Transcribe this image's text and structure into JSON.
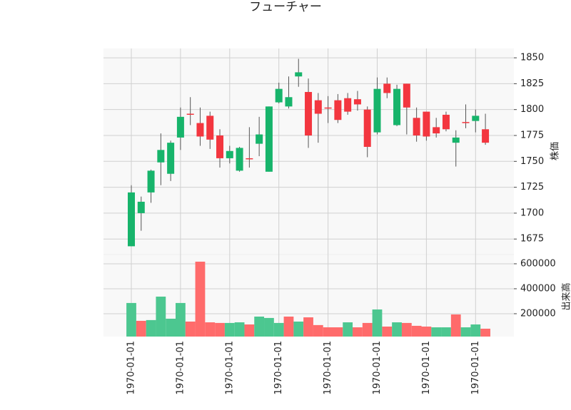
{
  "chart_data": {
    "type": "candlestick",
    "title": "フューチャー",
    "ylabel": "株価",
    "y2label": "出来高",
    "open": [
      1668,
      1700,
      1720,
      1749,
      1738,
      1773,
      1796,
      1787,
      1794,
      1775,
      1753,
      1741,
      1753,
      1767,
      1740,
      1807,
      1803,
      1832,
      1817,
      1809,
      1802,
      1809,
      1811,
      1810,
      1800,
      1778,
      1825,
      1785,
      1825,
      1792,
      1798,
      1783,
      1795,
      1768,
      1788,
      1789,
      1781
    ],
    "high": [
      1727,
      1716,
      1742,
      1777,
      1770,
      1802,
      1812,
      1802,
      1798,
      1781,
      1765,
      1764,
      1783,
      1793,
      1803,
      1826,
      1832,
      1849,
      1830,
      1816,
      1813,
      1815,
      1816,
      1818,
      1803,
      1831,
      1831,
      1824,
      1825,
      1802,
      1798,
      1792,
      1798,
      1780,
      1805,
      1800,
      1796
    ],
    "low": [
      1668,
      1683,
      1710,
      1727,
      1731,
      1761,
      1785,
      1765,
      1762,
      1744,
      1748,
      1740,
      1744,
      1755,
      1740,
      1806,
      1801,
      1822,
      1763,
      1768,
      1787,
      1787,
      1795,
      1799,
      1754,
      1776,
      1811,
      1784,
      1776,
      1769,
      1770,
      1773,
      1779,
      1745,
      1782,
      1778,
      1766
    ],
    "close": [
      1720,
      1711,
      1741,
      1761,
      1768,
      1793,
      1795,
      1774,
      1771,
      1753,
      1760,
      1763,
      1752,
      1776,
      1803,
      1820,
      1812,
      1836,
      1775,
      1796,
      1801,
      1790,
      1798,
      1805,
      1764,
      1820,
      1816,
      1820,
      1802,
      1775,
      1774,
      1777,
      1781,
      1773,
      1787,
      1794,
      1768
    ],
    "volume": [
      286000,
      143000,
      149000,
      337000,
      160000,
      286000,
      137000,
      617000,
      131000,
      126000,
      126000,
      131000,
      114000,
      177000,
      166000,
      126000,
      177000,
      137000,
      171000,
      109000,
      91000,
      91000,
      131000,
      91000,
      126000,
      234000,
      97000,
      131000,
      126000,
      103000,
      97000,
      91000,
      91000,
      194000,
      91000,
      114000,
      80000
    ],
    "volume_colors": [
      "#4cc790",
      "#ff6b6b",
      "#4cc790",
      "#4cc790",
      "#4cc790",
      "#4cc790",
      "#ff6b6b",
      "#ff6b6b",
      "#ff6b6b",
      "#ff6b6b",
      "#4cc790",
      "#4cc790",
      "#ff6b6b",
      "#4cc790",
      "#4cc790",
      "#4cc790",
      "#ff6b6b",
      "#4cc790",
      "#ff6b6b",
      "#ff6b6b",
      "#ff6b6b",
      "#ff6b6b",
      "#4cc790",
      "#ff6b6b",
      "#ff6b6b",
      "#4cc790",
      "#ff6b6b",
      "#4cc790",
      "#ff6b6b",
      "#ff6b6b",
      "#ff6b6b",
      "#4cc790",
      "#4cc790",
      "#ff6b6b",
      "#4cc790",
      "#4cc790",
      "#ff6b6b"
    ],
    "up_color": "#17b46b",
    "down_color": "#f3363f",
    "ylim": [
      1660,
      1859
    ],
    "yticks": [
      1675,
      1700,
      1725,
      1750,
      1775,
      1800,
      1825,
      1850
    ],
    "y2lim": [
      17000,
      674000
    ],
    "y2ticks": [
      200000,
      400000,
      600000
    ],
    "xticks": [
      {
        "value": 0,
        "label": "1970-01-01"
      },
      {
        "value": 5,
        "label": "1970-01-01"
      },
      {
        "value": 10,
        "label": "1970-01-01"
      },
      {
        "value": 15,
        "label": "1970-01-01"
      },
      {
        "value": 20,
        "label": "1970-01-01"
      },
      {
        "value": 25,
        "label": "1970-01-01"
      },
      {
        "value": 30,
        "label": "1970-01-01"
      },
      {
        "value": 35,
        "label": "1970-01-01"
      }
    ],
    "grid": true
  }
}
